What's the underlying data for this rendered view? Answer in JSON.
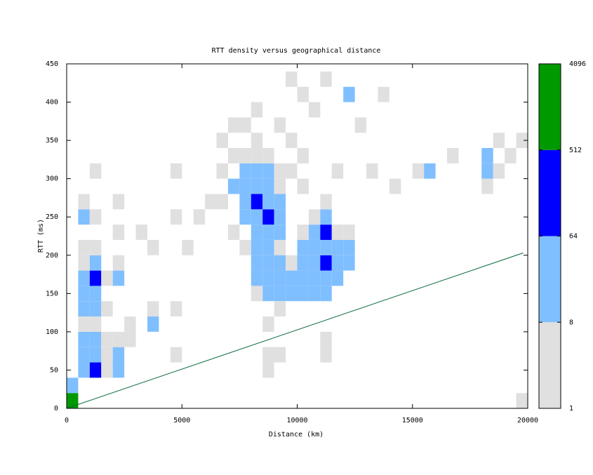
{
  "chart_data": {
    "type": "heatmap",
    "title": "RTT density versus geographical distance",
    "xlabel": "Distance (km)",
    "ylabel": "RTT (ms)",
    "xlim": [
      0,
      20000
    ],
    "xticks": [
      0,
      5000,
      10000,
      15000,
      20000
    ],
    "ylim": [
      0,
      450
    ],
    "yticks": [
      0,
      50,
      100,
      150,
      200,
      250,
      300,
      350,
      400,
      450
    ],
    "colorbar": {
      "scale": "log",
      "clim": [
        1,
        4096
      ],
      "ticks": [
        1,
        8,
        64,
        512,
        4096
      ],
      "colors": [
        "#e0e0e0",
        "#80bfff",
        "#0000ff",
        "#009900"
      ]
    },
    "cells": {
      "x": [
        0,
        0,
        500,
        500,
        500,
        500,
        500,
        500,
        500,
        500,
        500,
        500,
        500,
        1000,
        1000,
        1000,
        1000,
        1000,
        1000,
        1000,
        1000,
        1000,
        1000,
        1500,
        1500,
        1500,
        1500,
        1500,
        2000,
        2000,
        2000,
        2000,
        2000,
        2000,
        2500,
        2500,
        3500,
        3500,
        4500,
        4500,
        5000,
        5500,
        4500,
        1000,
        2000,
        3000,
        6500,
        6500,
        7000,
        7000,
        7000,
        7500,
        7500,
        7500,
        7500,
        7500,
        7500,
        8000,
        8000,
        8000,
        8000,
        8000,
        8000,
        8000,
        8000,
        8500,
        8500,
        8500,
        8500,
        8500,
        8500,
        8500,
        9000,
        9000,
        9000,
        9000,
        9000,
        9000,
        8000,
        8000,
        8000,
        8500,
        8500,
        8500,
        9000,
        9000,
        9000,
        9500,
        9500,
        9500,
        9000,
        8500,
        8500,
        8500,
        9000,
        10000,
        10000,
        10000,
        10000,
        10000,
        10500,
        10500,
        10500,
        10500,
        10500,
        10500,
        11000,
        11000,
        11000,
        11000,
        11000,
        11000,
        11000,
        11500,
        11500,
        11500,
        11500,
        12000,
        12000,
        12000,
        11000,
        11000,
        10000,
        10000,
        10500,
        11500,
        12000,
        12500,
        13500,
        13000,
        14000,
        15000,
        15500,
        16500,
        18000,
        18000,
        18000,
        18500,
        18500,
        19000,
        19500,
        19500,
        6500,
        7000,
        8000,
        9000,
        9500,
        9500,
        10000,
        11000,
        9500,
        7500,
        4500,
        3500,
        6000
      ],
      "y": [
        0,
        20,
        40,
        60,
        80,
        100,
        120,
        140,
        160,
        180,
        200,
        240,
        260,
        40,
        60,
        80,
        100,
        120,
        140,
        160,
        180,
        200,
        240,
        40,
        60,
        80,
        120,
        160,
        40,
        60,
        80,
        160,
        180,
        260,
        80,
        100,
        100,
        120,
        60,
        120,
        200,
        240,
        240,
        300,
        220,
        220,
        260,
        300,
        220,
        280,
        320,
        200,
        240,
        260,
        280,
        300,
        320,
        200,
        220,
        240,
        260,
        280,
        300,
        320,
        340,
        200,
        220,
        240,
        260,
        280,
        300,
        320,
        200,
        220,
        240,
        260,
        280,
        300,
        140,
        160,
        180,
        140,
        160,
        180,
        140,
        160,
        180,
        140,
        160,
        180,
        120,
        100,
        60,
        40,
        60,
        140,
        160,
        180,
        200,
        220,
        140,
        160,
        180,
        200,
        220,
        240,
        140,
        160,
        180,
        200,
        220,
        240,
        260,
        160,
        180,
        200,
        220,
        180,
        200,
        220,
        60,
        80,
        280,
        320,
        380,
        300,
        400,
        360,
        400,
        300,
        280,
        300,
        300,
        320,
        280,
        300,
        320,
        300,
        340,
        320,
        340,
        0,
        340,
        360,
        380,
        360,
        300,
        340,
        400,
        420,
        420,
        360,
        300,
        200,
        260
      ],
      "counts": [
        600,
        20,
        30,
        20,
        10,
        5,
        10,
        20,
        15,
        5,
        3,
        10,
        5,
        70,
        20,
        10,
        5,
        15,
        30,
        70,
        15,
        5,
        3,
        3,
        5,
        3,
        3,
        3,
        10,
        10,
        3,
        10,
        5,
        3,
        3,
        5,
        10,
        5,
        3,
        3,
        3,
        3,
        3,
        3,
        3,
        3,
        5,
        3,
        5,
        10,
        3,
        5,
        15,
        20,
        15,
        10,
        3,
        10,
        15,
        30,
        70,
        30,
        15,
        5,
        3,
        10,
        30,
        80,
        40,
        20,
        10,
        3,
        5,
        10,
        15,
        10,
        5,
        3,
        5,
        10,
        10,
        10,
        15,
        15,
        10,
        10,
        10,
        15,
        10,
        5,
        5,
        3,
        3,
        3,
        3,
        10,
        20,
        20,
        10,
        5,
        15,
        30,
        40,
        20,
        15,
        5,
        10,
        30,
        80,
        30,
        80,
        10,
        3,
        15,
        20,
        15,
        5,
        10,
        10,
        3,
        3,
        3,
        3,
        3,
        3,
        3,
        15,
        3,
        3,
        3,
        3,
        3,
        10,
        3,
        3,
        15,
        10,
        3,
        3,
        3,
        5,
        3,
        3,
        3,
        3,
        3,
        3,
        3,
        3,
        3,
        3,
        3,
        3,
        3,
        3
      ]
    },
    "line": {
      "color": "#006633",
      "x": [
        0,
        19800
      ],
      "y": [
        0,
        203
      ]
    }
  }
}
